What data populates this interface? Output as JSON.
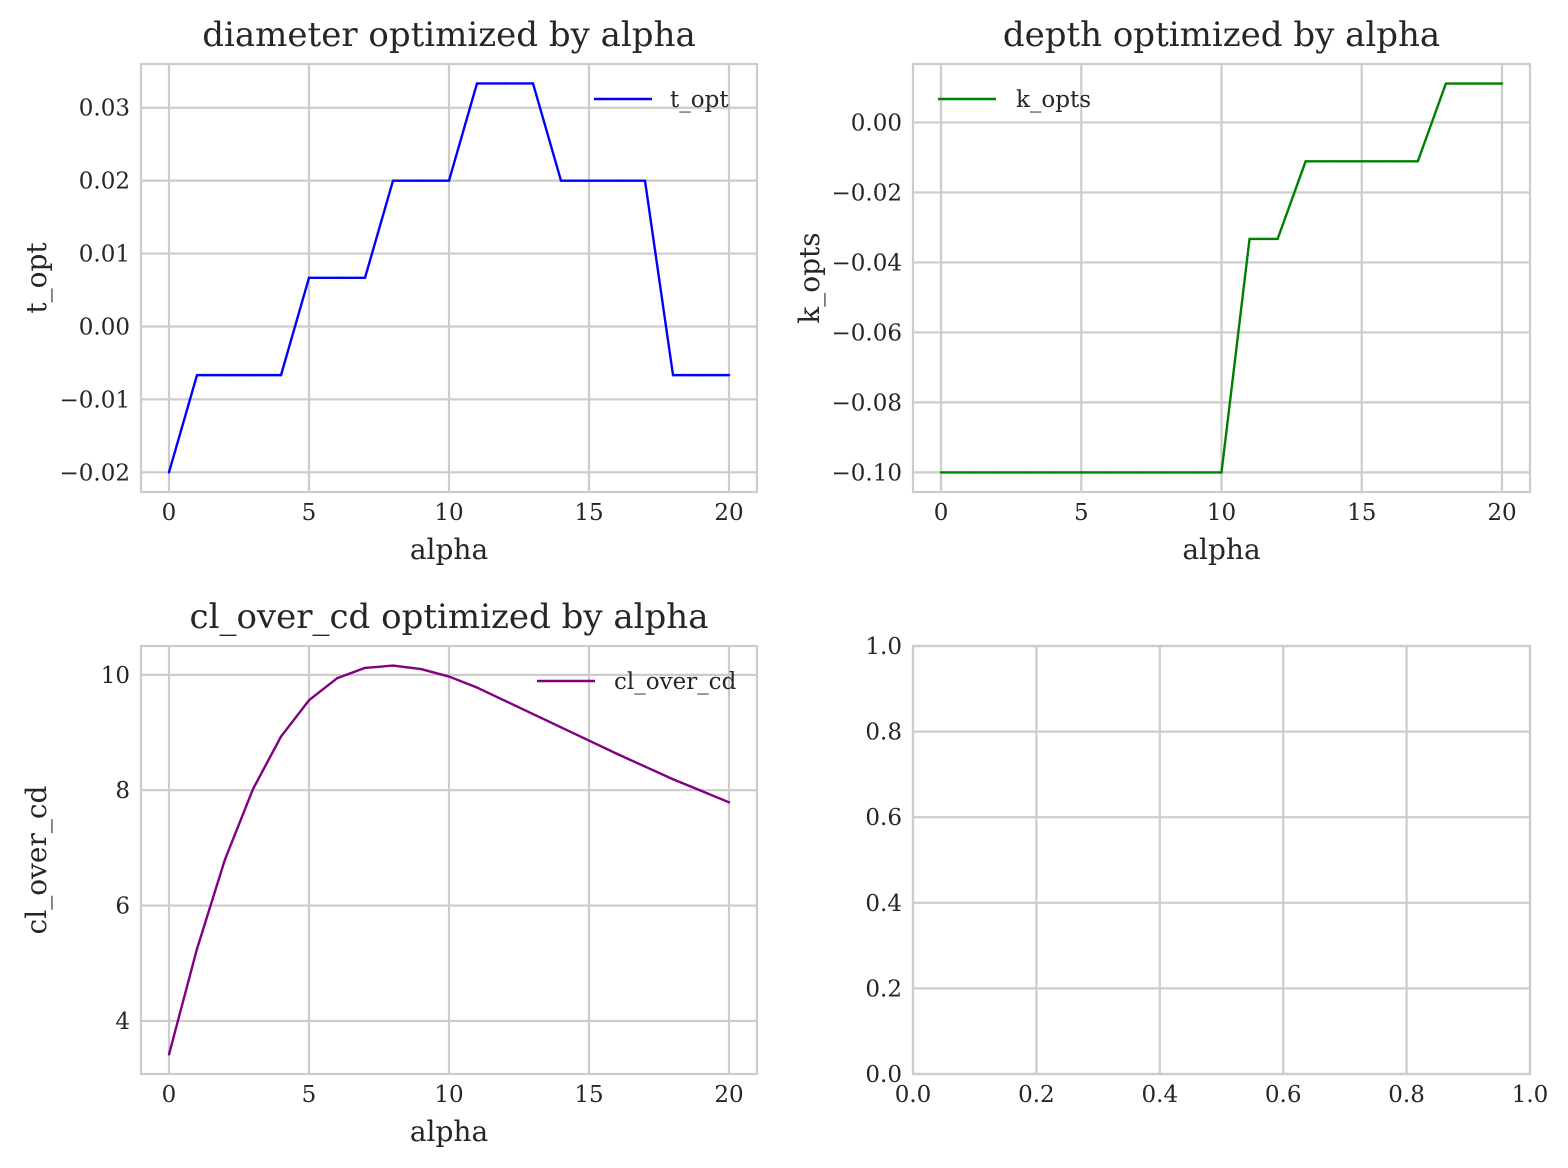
{
  "chart_data": [
    {
      "type": "line",
      "title": "diameter optimized by alpha",
      "xlabel": "alpha",
      "ylabel": "t_opt",
      "xlim": [
        -1,
        21
      ],
      "ylim": [
        -0.0227,
        0.036
      ],
      "xticks": [
        0,
        5,
        10,
        15,
        20
      ],
      "xtick_labels": [
        "0",
        "5",
        "10",
        "15",
        "20"
      ],
      "yticks": [
        -0.02,
        -0.01,
        0.0,
        0.01,
        0.02,
        0.03
      ],
      "ytick_labels": [
        "−0.02",
        "−0.01",
        "0.00",
        "0.01",
        "0.02",
        "0.03"
      ],
      "grid": true,
      "legend_position": "top-right",
      "x": [
        0,
        1,
        2,
        3,
        4,
        5,
        6,
        7,
        8,
        9,
        10,
        11,
        12,
        13,
        14,
        15,
        16,
        17,
        18,
        19,
        20
      ],
      "series": [
        {
          "name": "t_opt",
          "color": "#0000ff",
          "values": [
            -0.02,
            -0.00667,
            -0.00667,
            -0.00667,
            -0.00667,
            0.00667,
            0.00667,
            0.00667,
            0.02,
            0.02,
            0.02,
            0.03333,
            0.03333,
            0.03333,
            0.02,
            0.02,
            0.02,
            0.02,
            -0.00667,
            -0.00667,
            -0.00667
          ]
        }
      ]
    },
    {
      "type": "line",
      "title": "depth optimized by alpha",
      "xlabel": "alpha",
      "ylabel": "k_opts",
      "xlim": [
        -1,
        21
      ],
      "ylim": [
        -0.1056,
        0.0167
      ],
      "xticks": [
        0,
        5,
        10,
        15,
        20
      ],
      "xtick_labels": [
        "0",
        "5",
        "10",
        "15",
        "20"
      ],
      "yticks": [
        -0.1,
        -0.08,
        -0.06,
        -0.04,
        -0.02,
        0.0
      ],
      "ytick_labels": [
        "−0.10",
        "−0.08",
        "−0.06",
        "−0.04",
        "−0.02",
        "0.00"
      ],
      "grid": true,
      "legend_position": "top-left",
      "x": [
        0,
        1,
        2,
        3,
        4,
        5,
        6,
        7,
        8,
        9,
        10,
        11,
        12,
        13,
        14,
        15,
        16,
        17,
        18,
        19,
        20
      ],
      "series": [
        {
          "name": "k_opts",
          "color": "#008000",
          "values": [
            -0.1,
            -0.1,
            -0.1,
            -0.1,
            -0.1,
            -0.1,
            -0.1,
            -0.1,
            -0.1,
            -0.1,
            -0.1,
            -0.0333,
            -0.0333,
            -0.0111,
            -0.0111,
            -0.0111,
            -0.0111,
            -0.0111,
            0.0111,
            0.0111,
            0.0111
          ]
        }
      ]
    },
    {
      "type": "line",
      "title": "cl_over_cd optimized by alpha",
      "xlabel": "alpha",
      "ylabel": "cl_over_cd",
      "xlim": [
        -1,
        21
      ],
      "ylim": [
        3.08,
        10.5
      ],
      "xticks": [
        0,
        5,
        10,
        15,
        20
      ],
      "xtick_labels": [
        "0",
        "5",
        "10",
        "15",
        "20"
      ],
      "yticks": [
        4,
        6,
        8,
        10
      ],
      "ytick_labels": [
        "4",
        "6",
        "8",
        "10"
      ],
      "grid": true,
      "legend_position": "top-right",
      "x": [
        0,
        1,
        2,
        3,
        4,
        5,
        6,
        7,
        8,
        9,
        10,
        11,
        12,
        13,
        14,
        15,
        16,
        17,
        18,
        19,
        20
      ],
      "series": [
        {
          "name": "cl_over_cd",
          "color": "#800080",
          "values": [
            3.42,
            5.25,
            6.8,
            8.02,
            8.93,
            9.56,
            9.94,
            10.12,
            10.16,
            10.1,
            9.97,
            9.78,
            9.55,
            9.32,
            9.09,
            8.86,
            8.63,
            8.41,
            8.19,
            7.99,
            7.79
          ]
        }
      ]
    },
    {
      "type": "line",
      "title": "",
      "xlabel": "",
      "ylabel": "",
      "xlim": [
        0,
        1
      ],
      "ylim": [
        0,
        1
      ],
      "xticks": [
        0,
        0.2,
        0.4,
        0.6,
        0.8,
        1.0
      ],
      "xtick_labels": [
        "0.0",
        "0.2",
        "0.4",
        "0.6",
        "0.8",
        "1.0"
      ],
      "yticks": [
        0,
        0.2,
        0.4,
        0.6,
        0.8,
        1.0
      ],
      "ytick_labels": [
        "0.0",
        "0.2",
        "0.4",
        "0.6",
        "0.8",
        "1.0"
      ],
      "grid": true,
      "x": [],
      "series": []
    }
  ]
}
